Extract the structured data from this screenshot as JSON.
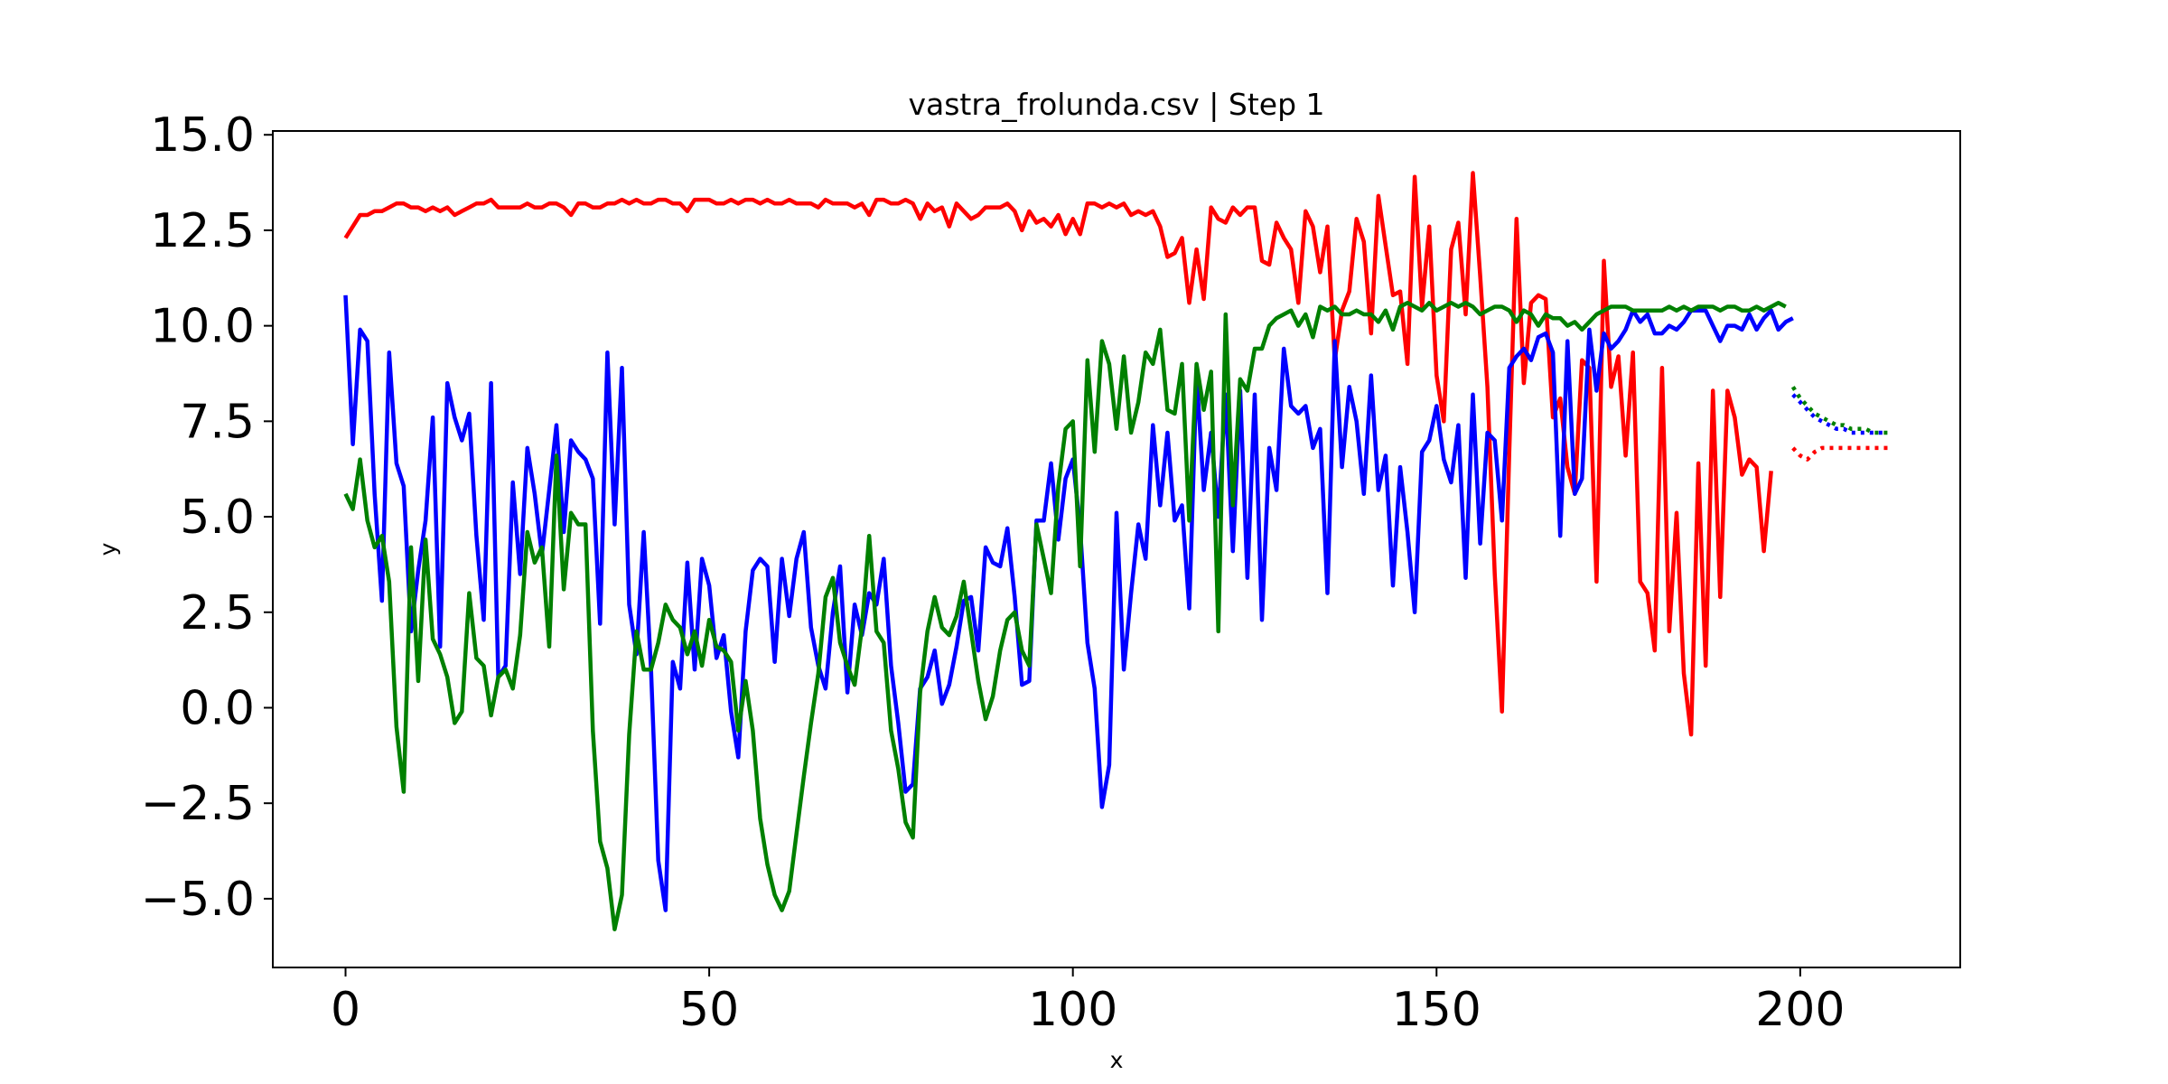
{
  "chart_data": {
    "type": "line",
    "title": "vastra_frolunda.csv | Step 1",
    "xlabel": "x",
    "ylabel": "y",
    "xlim": [
      -10,
      222
    ],
    "ylim": [
      -6.8,
      15.1
    ],
    "xticks": [
      0,
      50,
      100,
      150,
      200
    ],
    "yticks": [
      15.0,
      12.5,
      10.0,
      7.5,
      5.0,
      2.5,
      0.0,
      -2.5,
      -5.0
    ],
    "xtick_labels": [
      "0",
      "50",
      "100",
      "150",
      "200"
    ],
    "ytick_labels": [
      "15.0",
      "12.5",
      "10.0",
      "7.5",
      "5.0",
      "2.5",
      "0.0",
      "−2.5",
      "−5.0"
    ],
    "grid": false,
    "series": [
      {
        "color": "#ff0000",
        "style": "solid",
        "x_start": 0,
        "values": [
          12.3,
          12.6,
          12.9,
          12.9,
          13.0,
          13.0,
          13.1,
          13.2,
          13.2,
          13.1,
          13.1,
          13.0,
          13.1,
          13.0,
          13.1,
          12.9,
          13.0,
          13.1,
          13.2,
          13.2,
          13.3,
          13.1,
          13.1,
          13.1,
          13.1,
          13.2,
          13.1,
          13.1,
          13.2,
          13.2,
          13.1,
          12.9,
          13.2,
          13.2,
          13.1,
          13.1,
          13.2,
          13.2,
          13.3,
          13.2,
          13.3,
          13.2,
          13.2,
          13.3,
          13.3,
          13.2,
          13.2,
          13.0,
          13.3,
          13.3,
          13.3,
          13.2,
          13.2,
          13.3,
          13.2,
          13.3,
          13.3,
          13.2,
          13.3,
          13.2,
          13.2,
          13.3,
          13.2,
          13.2,
          13.2,
          13.1,
          13.3,
          13.2,
          13.2,
          13.2,
          13.1,
          13.2,
          12.9,
          13.3,
          13.3,
          13.2,
          13.2,
          13.3,
          13.2,
          12.8,
          13.2,
          13.0,
          13.1,
          12.6,
          13.2,
          13.0,
          12.8,
          12.9,
          13.1,
          13.1,
          13.1,
          13.2,
          13.0,
          12.5,
          13.0,
          12.7,
          12.8,
          12.6,
          12.9,
          12.4,
          12.8,
          12.4,
          13.2,
          13.2,
          13.1,
          13.2,
          13.1,
          13.2,
          12.9,
          13.0,
          12.9,
          13.0,
          12.6,
          11.8,
          11.9,
          12.3,
          10.6,
          12.0,
          10.7,
          13.1,
          12.8,
          12.7,
          13.1,
          12.9,
          13.1,
          13.1,
          11.7,
          11.6,
          12.7,
          12.3,
          12.0,
          10.6,
          13.0,
          12.6,
          11.4,
          12.6,
          9.1,
          10.4,
          10.9,
          12.8,
          12.2,
          9.8,
          13.4,
          12.1,
          10.8,
          10.9,
          9.0,
          13.9,
          10.5,
          12.6,
          8.7,
          7.5,
          12.0,
          12.7,
          10.3,
          14.0,
          11.3,
          8.4,
          3.5,
          -0.1,
          6.7,
          12.8,
          8.5,
          10.6,
          10.8,
          10.7,
          7.6,
          8.1,
          6.3,
          5.6,
          9.1,
          8.9,
          3.3,
          11.7,
          8.4,
          9.2,
          6.6,
          9.3,
          3.3,
          3.0,
          1.5,
          8.9,
          2.0,
          5.1,
          0.9,
          -0.7,
          6.4,
          1.1,
          8.3,
          2.9,
          8.3,
          7.6,
          6.1,
          6.5,
          6.3,
          4.1,
          6.2
        ]
      },
      {
        "color": "#0000ff",
        "style": "solid",
        "x_start": 0,
        "values": [
          10.8,
          6.9,
          9.9,
          9.6,
          5.6,
          2.8,
          9.3,
          6.4,
          5.8,
          2.0,
          3.6,
          4.9,
          7.6,
          1.6,
          8.5,
          7.6,
          7.0,
          7.7,
          4.5,
          2.3,
          8.5,
          0.8,
          1.1,
          5.9,
          3.5,
          6.8,
          5.6,
          4.0,
          5.7,
          7.4,
          4.6,
          7.0,
          6.7,
          6.5,
          6.0,
          2.2,
          9.3,
          4.8,
          8.9,
          2.7,
          1.4,
          4.6,
          1.0,
          -4.0,
          -5.3,
          1.2,
          0.5,
          3.8,
          1.0,
          3.9,
          3.2,
          1.3,
          1.9,
          -0.1,
          -1.3,
          2.0,
          3.6,
          3.9,
          3.7,
          1.2,
          3.9,
          2.4,
          3.9,
          4.6,
          2.1,
          1.1,
          0.5,
          2.5,
          3.7,
          0.4,
          2.7,
          1.9,
          3.0,
          2.7,
          3.9,
          1.1,
          -0.4,
          -2.2,
          -2.0,
          0.5,
          0.8,
          1.5,
          0.1,
          0.6,
          1.6,
          2.8,
          2.9,
          1.5,
          4.2,
          3.8,
          3.7,
          4.7,
          2.9,
          0.6,
          0.7,
          4.9,
          4.9,
          6.4,
          4.4,
          6.0,
          6.5,
          4.7,
          1.7,
          0.5,
          -2.6,
          -1.5,
          5.1,
          1.0,
          3.0,
          4.8,
          3.9,
          7.4,
          5.3,
          7.2,
          4.9,
          5.3,
          2.6,
          8.7,
          5.7,
          7.2,
          5.0,
          8.2,
          4.1,
          8.3,
          3.4,
          8.2,
          2.3,
          6.8,
          5.7,
          9.4,
          7.9,
          7.7,
          7.9,
          6.8,
          7.3,
          3.0,
          9.6,
          6.3,
          8.4,
          7.5,
          5.6,
          8.7,
          5.7,
          6.6,
          3.2,
          6.3,
          4.6,
          2.5,
          6.7,
          7.0,
          7.9,
          6.5,
          5.9,
          7.4,
          3.4,
          8.2,
          4.3,
          7.2,
          7.0,
          4.9,
          8.9,
          9.2,
          9.4,
          9.1,
          9.7,
          9.8,
          9.3,
          4.5,
          9.6,
          5.6,
          6.0,
          9.9,
          8.3,
          9.8,
          9.4,
          9.6,
          9.9,
          10.4,
          10.1,
          10.3,
          9.8,
          9.8,
          10.0,
          9.9,
          10.1,
          10.4,
          10.4,
          10.4,
          10.0,
          9.6,
          10.0,
          10.0,
          9.9,
          10.3,
          9.9,
          10.2,
          10.4,
          9.9,
          10.1,
          10.2
        ]
      },
      {
        "color": "#008000",
        "style": "solid",
        "x_start": 0,
        "values": [
          5.6,
          5.2,
          6.5,
          4.9,
          4.2,
          4.5,
          3.3,
          -0.5,
          -2.2,
          4.2,
          0.7,
          4.4,
          1.8,
          1.4,
          0.8,
          -0.4,
          -0.1,
          3.0,
          1.3,
          1.1,
          -0.2,
          0.8,
          1.0,
          0.5,
          1.9,
          4.6,
          3.8,
          4.2,
          1.6,
          6.6,
          3.1,
          5.1,
          4.8,
          4.8,
          -0.6,
          -3.5,
          -4.2,
          -5.8,
          -4.9,
          -0.7,
          2.0,
          1.0,
          1.0,
          1.7,
          2.7,
          2.3,
          2.1,
          1.4,
          2.0,
          1.1,
          2.3,
          1.6,
          1.5,
          1.2,
          -0.6,
          0.7,
          -0.6,
          -2.9,
          -4.1,
          -4.9,
          -5.3,
          -4.8,
          -3.3,
          -1.8,
          -0.4,
          0.9,
          2.9,
          3.4,
          1.7,
          1.1,
          0.6,
          2.1,
          4.5,
          2.0,
          1.7,
          -0.6,
          -1.6,
          -3.0,
          -3.4,
          0.4,
          2.0,
          2.9,
          2.1,
          1.9,
          2.4,
          3.3,
          2.0,
          0.7,
          -0.3,
          0.3,
          1.5,
          2.3,
          2.5,
          1.5,
          1.1,
          4.8,
          3.9,
          3.0,
          5.8,
          7.3,
          7.5,
          3.7,
          9.1,
          6.7,
          9.6,
          9.0,
          7.3,
          9.2,
          7.2,
          8.0,
          9.3,
          9.0,
          9.9,
          7.8,
          7.7,
          9.0,
          4.9,
          9.0,
          7.8,
          8.8,
          2.0,
          10.3,
          5.3,
          8.6,
          8.3,
          9.4,
          9.4,
          10.0,
          10.2,
          10.3,
          10.4,
          10.0,
          10.3,
          9.7,
          10.5,
          10.4,
          10.5,
          10.3,
          10.3,
          10.4,
          10.3,
          10.3,
          10.1,
          10.4,
          9.9,
          10.5,
          10.6,
          10.5,
          10.4,
          10.6,
          10.4,
          10.5,
          10.6,
          10.5,
          10.6,
          10.5,
          10.3,
          10.4,
          10.5,
          10.5,
          10.4,
          10.1,
          10.4,
          10.3,
          10.0,
          10.3,
          10.2,
          10.2,
          10.0,
          10.1,
          9.9,
          10.1,
          10.3,
          10.4,
          10.5,
          10.5,
          10.5,
          10.4,
          10.4,
          10.4,
          10.4,
          10.4,
          10.5,
          10.4,
          10.5,
          10.4,
          10.5,
          10.5,
          10.5,
          10.4,
          10.5,
          10.5,
          10.4,
          10.4,
          10.5,
          10.4,
          10.5,
          10.6,
          10.5
        ]
      },
      {
        "color": "#ff0000",
        "style": "dotted",
        "x_start": 199,
        "values": [
          6.8,
          6.6,
          6.5,
          6.7,
          6.8,
          6.8,
          6.8,
          6.8,
          6.8,
          6.8,
          6.8,
          6.8,
          6.8,
          6.8
        ]
      },
      {
        "color": "#0000ff",
        "style": "dotted",
        "x_start": 199,
        "values": [
          8.2,
          8.0,
          7.8,
          7.6,
          7.5,
          7.4,
          7.3,
          7.3,
          7.2,
          7.2,
          7.2,
          7.2,
          7.2,
          7.2
        ]
      },
      {
        "color": "#008000",
        "style": "dotted",
        "x_start": 199,
        "values": [
          8.4,
          8.1,
          7.9,
          7.7,
          7.6,
          7.5,
          7.4,
          7.4,
          7.3,
          7.3,
          7.3,
          7.2,
          7.2,
          7.2
        ]
      }
    ]
  }
}
